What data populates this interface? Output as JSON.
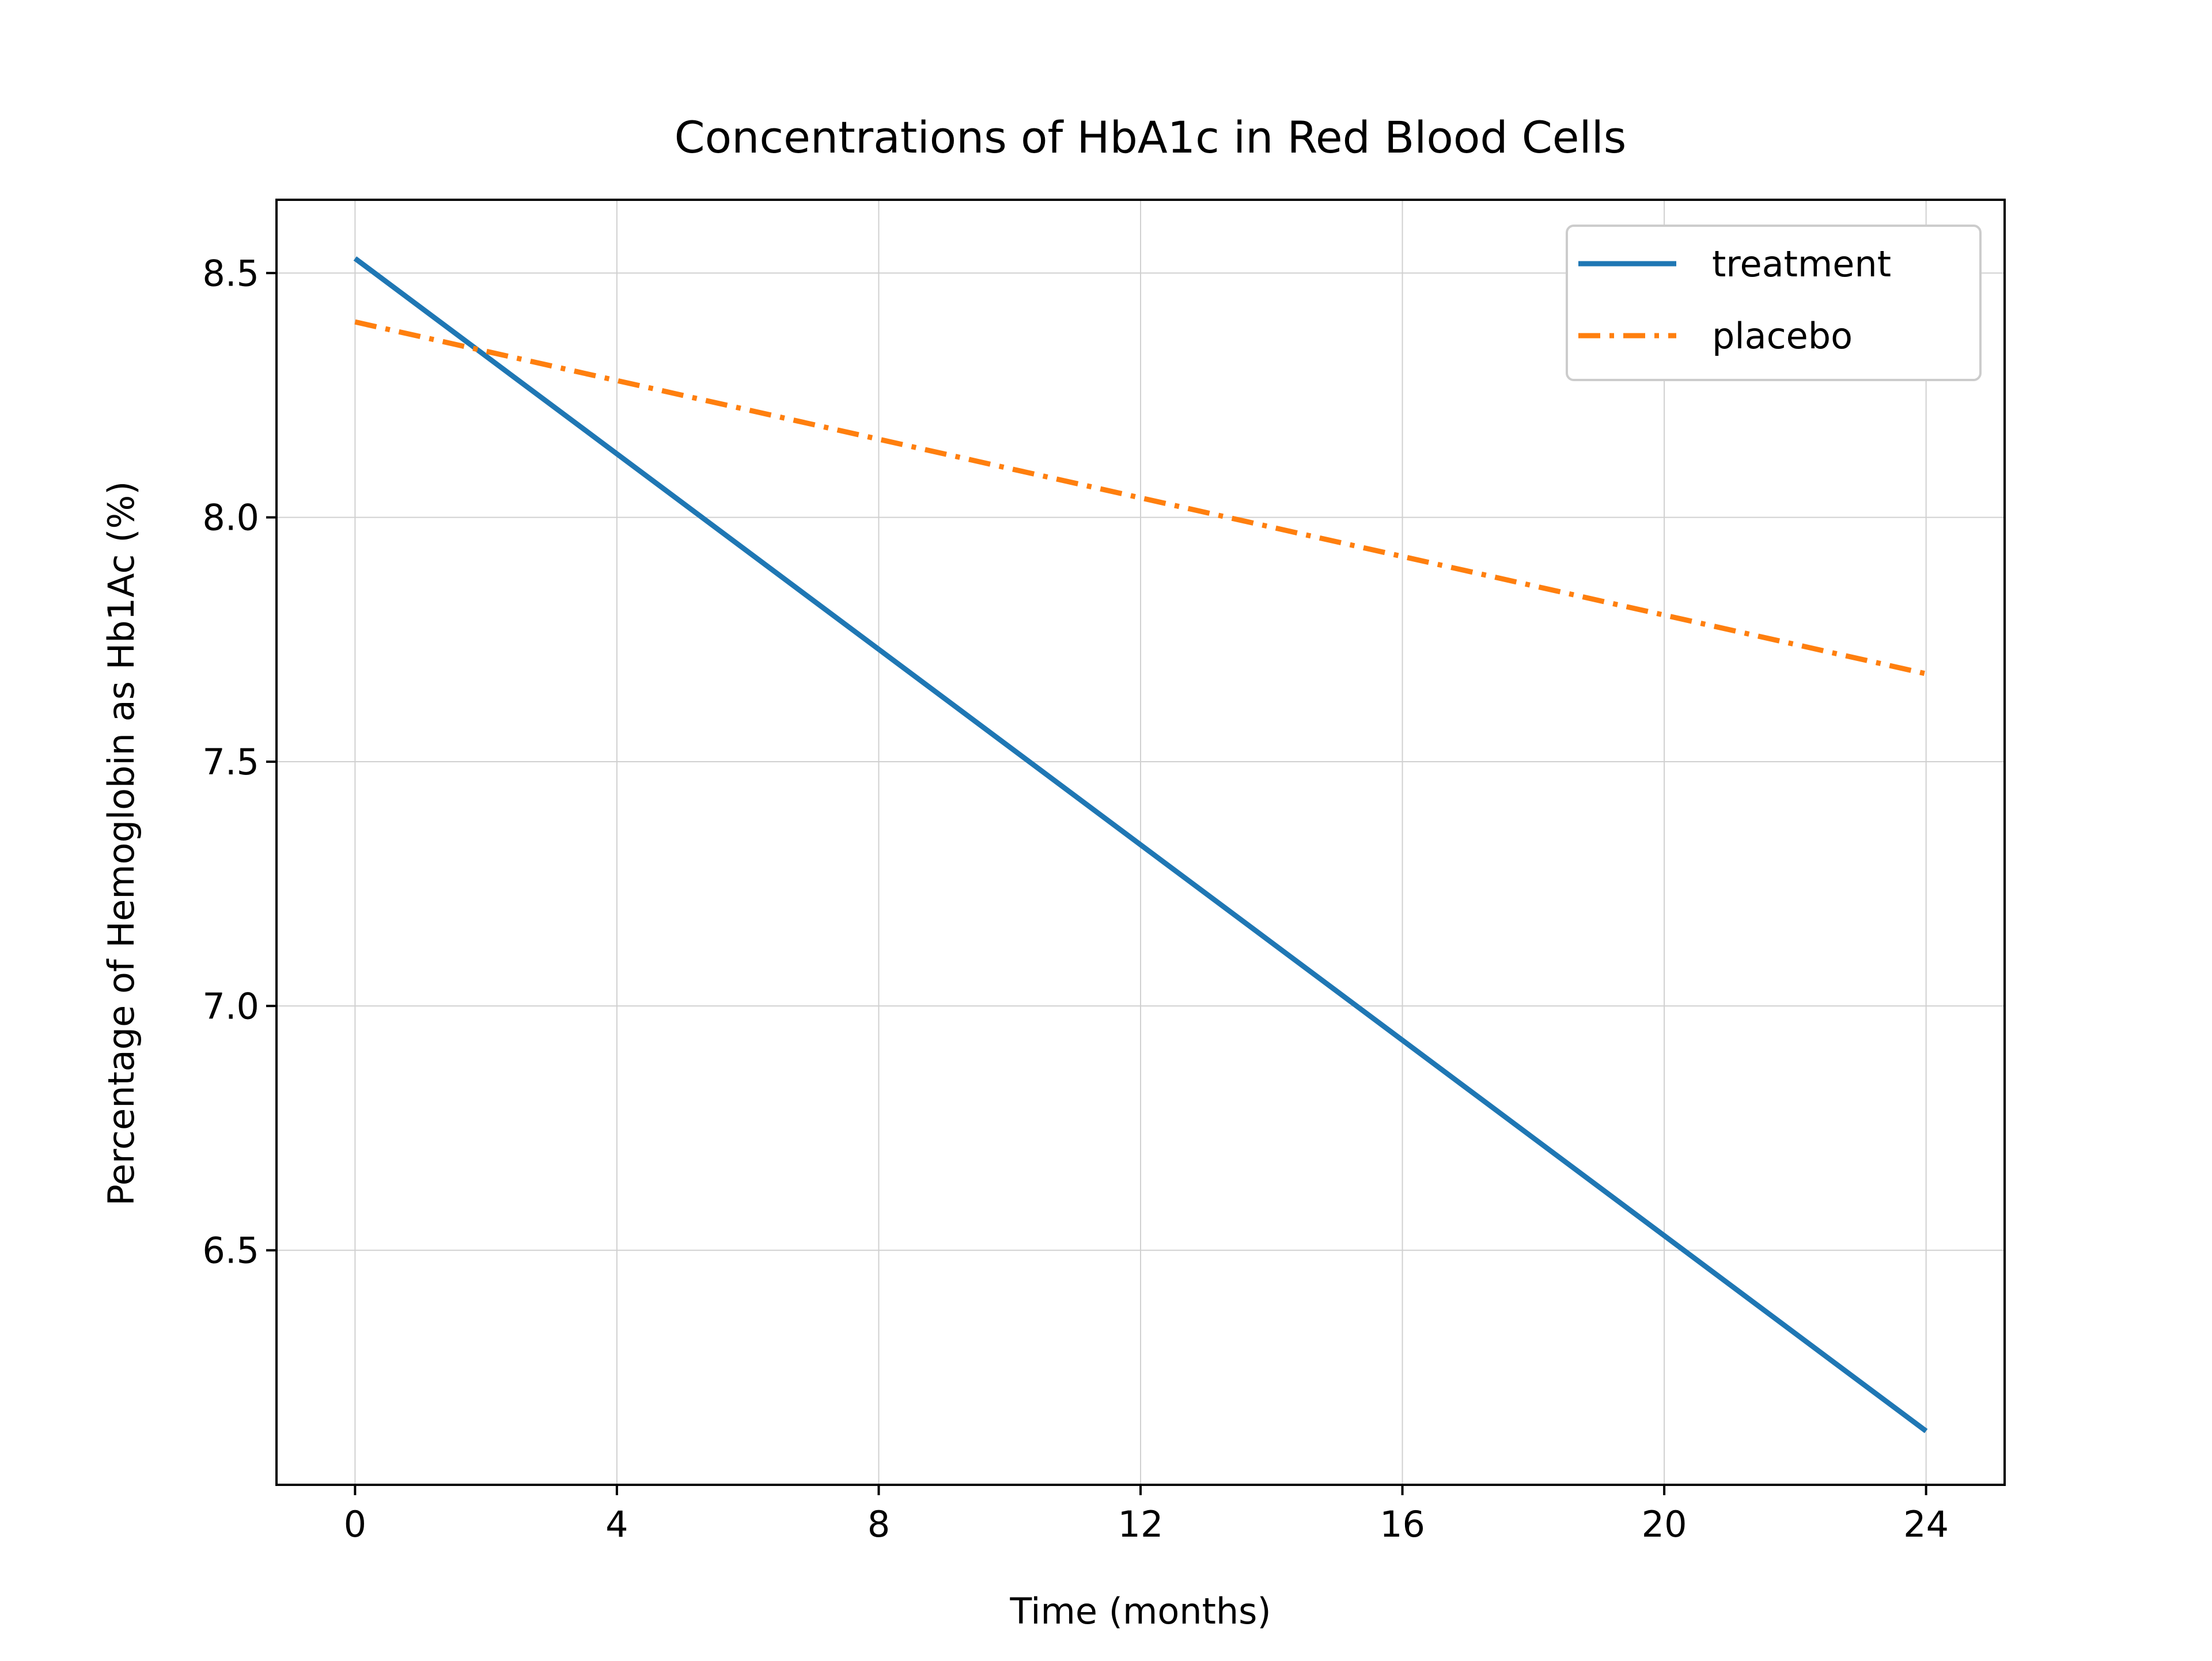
{
  "chart_data": {
    "type": "line",
    "title": "Concentrations of HbA1c in Red Blood Cells",
    "xlabel": "Time (months)",
    "ylabel": "Percentage of Hemoglobin as Hb1Ac (%)",
    "xlim": [
      -1.2,
      25.2
    ],
    "ylim": [
      6.02,
      8.65
    ],
    "xticks": [
      0,
      4,
      8,
      12,
      16,
      20,
      24
    ],
    "yticks": [
      6.5,
      7.0,
      7.5,
      8.0,
      8.5
    ],
    "xtick_labels": [
      "0",
      "4",
      "8",
      "12",
      "16",
      "20",
      "24"
    ],
    "ytick_labels": [
      "6.5",
      "7.0",
      "7.5",
      "8.0",
      "8.5"
    ],
    "grid": true,
    "legend_position": "top-right",
    "series": [
      {
        "name": "treatment",
        "color": "#1f77b4",
        "linestyle": "solid",
        "x": [
          0,
          24
        ],
        "y": [
          8.53,
          6.13
        ]
      },
      {
        "name": "placebo",
        "color": "#ff7f0e",
        "linestyle": "dashdot",
        "x": [
          0,
          24
        ],
        "y": [
          8.4,
          7.68
        ]
      }
    ]
  }
}
